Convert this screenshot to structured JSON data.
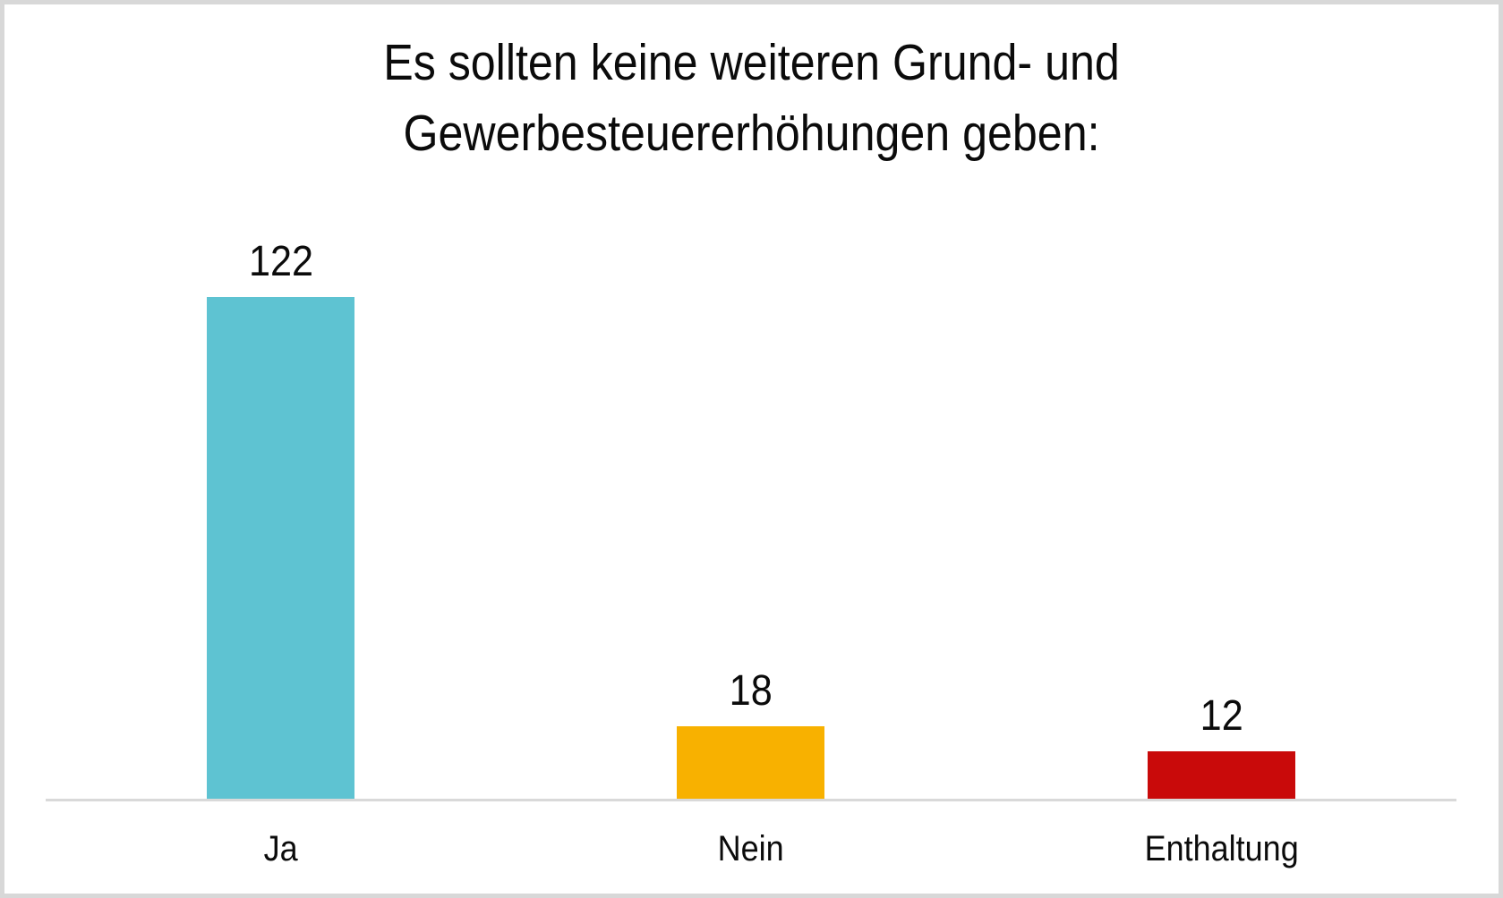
{
  "frame": {
    "border_color": "#d8d8d8",
    "background": "#ffffff"
  },
  "title": {
    "line1": "Es sollten keine weiteren Grund- und",
    "line2": "Gewerbesteuererhöhungen geben:"
  },
  "chart_data": {
    "type": "bar",
    "title": "Es sollten keine weiteren Grund- und Gewerbesteuererhöhungen geben:",
    "categories": [
      "Ja",
      "Nein",
      "Enthaltung"
    ],
    "values": [
      122,
      18,
      12
    ],
    "bar_colors": [
      "#5EC3D2",
      "#F8B100",
      "#C90A0A"
    ],
    "data_labels": [
      122,
      18,
      12
    ],
    "xlabel": "",
    "ylabel": "",
    "ylim": [
      0,
      130
    ],
    "grid": false,
    "legend": "none",
    "axis_line_color": "#d9d9d9",
    "text_color": "#0b0b0b",
    "background": "#ffffff"
  }
}
